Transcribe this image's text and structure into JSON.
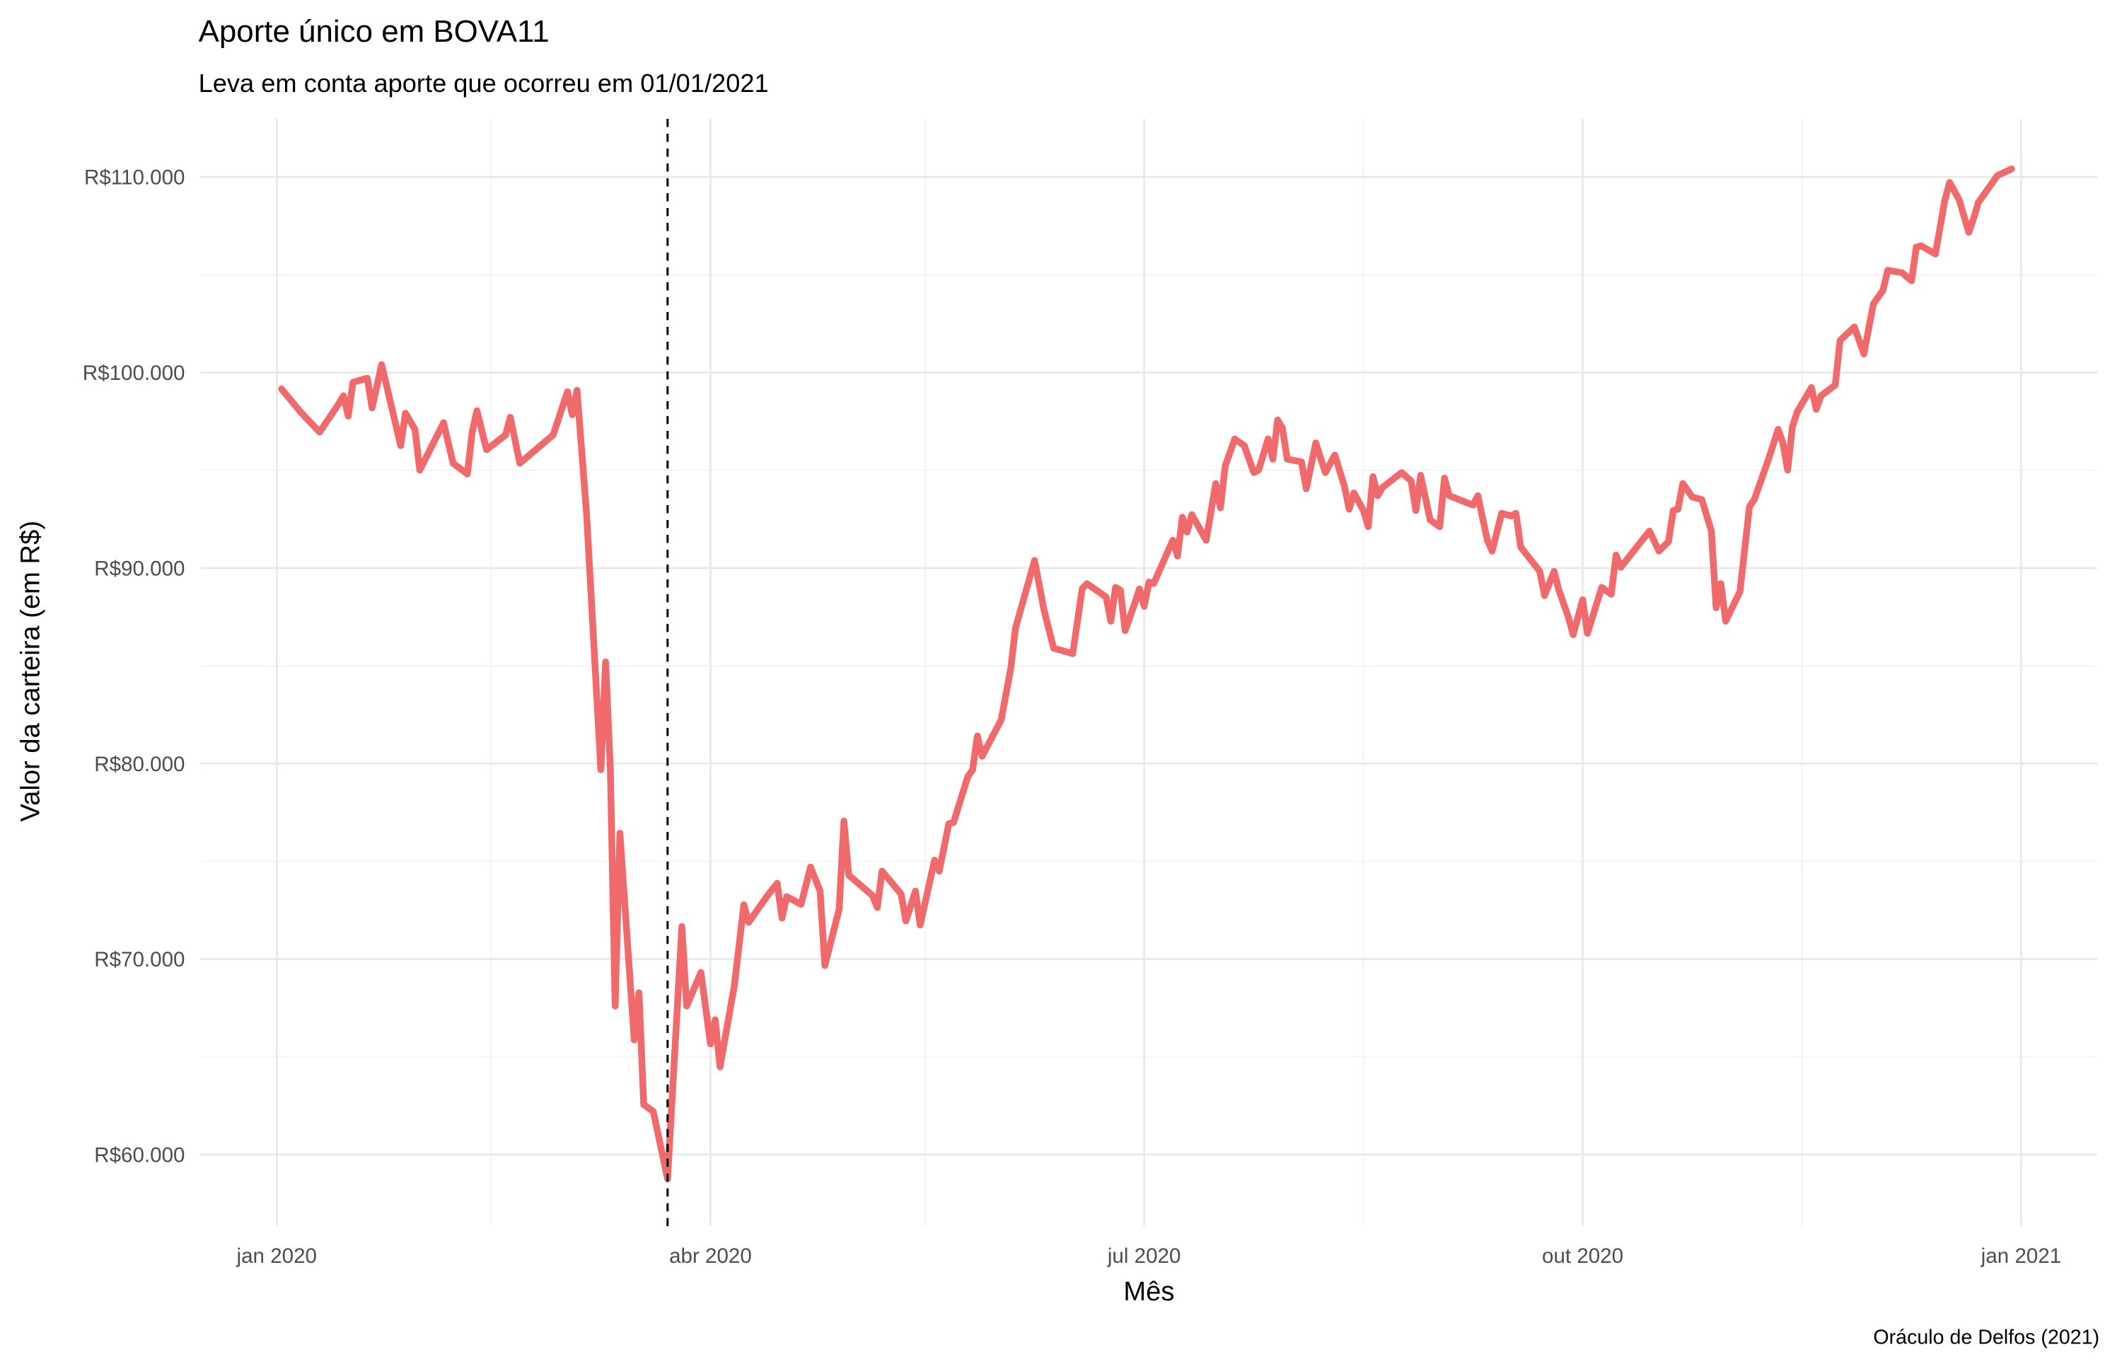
{
  "chart_data": {
    "type": "line",
    "title": "Aporte único em BOVA11",
    "subtitle": "Leva em conta aporte que ocorreu em 01/01/2021",
    "x_label": "Mês",
    "y_label": "Valor da carteira (em R$)",
    "caption": "Oráculo de Delfos (2021)",
    "color": "#f0696b",
    "grid": true,
    "vline": "2020-03-23",
    "xlim": [
      "2019-12-16",
      "2021-01-17"
    ],
    "xticks": [
      {
        "value": "2020-01-01",
        "label": "jan 2020"
      },
      {
        "value": "2020-04-01",
        "label": "abr 2020"
      },
      {
        "value": "2020-07-01",
        "label": "jul 2020"
      },
      {
        "value": "2020-10-01",
        "label": "out 2020"
      },
      {
        "value": "2021-01-01",
        "label": "jan 2021"
      }
    ],
    "xminor": [
      "2020-02-15",
      "2020-05-16",
      "2020-08-16",
      "2020-11-16"
    ],
    "ylim": [
      56340,
      112970
    ],
    "yticks": [
      {
        "value": 60000,
        "label": "R$60.000"
      },
      {
        "value": 70000,
        "label": "R$70.000"
      },
      {
        "value": 80000,
        "label": "R$80.000"
      },
      {
        "value": 90000,
        "label": "R$90.000"
      },
      {
        "value": 100000,
        "label": "R$100.000"
      },
      {
        "value": 110000,
        "label": "R$110.000"
      }
    ],
    "yminor": [
      65000,
      75000,
      85000,
      95000,
      105000
    ],
    "x": [
      "2020-01-02",
      "2020-01-06",
      "2020-01-10",
      "2020-01-14",
      "2020-01-15",
      "2020-01-16",
      "2020-01-17",
      "2020-01-20",
      "2020-01-21",
      "2020-01-23",
      "2020-01-27",
      "2020-01-28",
      "2020-01-30",
      "2020-01-31",
      "2020-02-05",
      "2020-02-07",
      "2020-02-10",
      "2020-02-11",
      "2020-02-12",
      "2020-02-14",
      "2020-02-18",
      "2020-02-19",
      "2020-02-21",
      "2020-02-28",
      "2020-03-02",
      "2020-03-03",
      "2020-03-04",
      "2020-03-06",
      "2020-03-09",
      "2020-03-10",
      "2020-03-11",
      "2020-03-12",
      "2020-03-13",
      "2020-03-16",
      "2020-03-17",
      "2020-03-18",
      "2020-03-20",
      "2020-03-23",
      "2020-03-26",
      "2020-03-27",
      "2020-03-30",
      "2020-04-01",
      "2020-04-02",
      "2020-04-03",
      "2020-04-06",
      "2020-04-08",
      "2020-04-09",
      "2020-04-13",
      "2020-04-15",
      "2020-04-16",
      "2020-04-17",
      "2020-04-20",
      "2020-04-22",
      "2020-04-24",
      "2020-04-25",
      "2020-04-28",
      "2020-04-29",
      "2020-04-30",
      "2020-05-05",
      "2020-05-06",
      "2020-05-07",
      "2020-05-11",
      "2020-05-12",
      "2020-05-14",
      "2020-05-15",
      "2020-05-18",
      "2020-05-19",
      "2020-05-21",
      "2020-05-22",
      "2020-05-25",
      "2020-05-26",
      "2020-05-27",
      "2020-05-28",
      "2020-06-01",
      "2020-06-03",
      "2020-06-04",
      "2020-06-08",
      "2020-06-10",
      "2020-06-12",
      "2020-06-16",
      "2020-06-18",
      "2020-06-19",
      "2020-06-23",
      "2020-06-24",
      "2020-06-25",
      "2020-06-26",
      "2020-06-27",
      "2020-06-29",
      "2020-06-30",
      "2020-07-01",
      "2020-07-02",
      "2020-07-03",
      "2020-07-07",
      "2020-07-08",
      "2020-07-09",
      "2020-07-10",
      "2020-07-11",
      "2020-07-14",
      "2020-07-16",
      "2020-07-17",
      "2020-07-18",
      "2020-07-20",
      "2020-07-22",
      "2020-07-24",
      "2020-07-25",
      "2020-07-27",
      "2020-07-28",
      "2020-07-29",
      "2020-07-30",
      "2020-07-31",
      "2020-08-03",
      "2020-08-04",
      "2020-08-06",
      "2020-08-08",
      "2020-08-10",
      "2020-08-12",
      "2020-08-13",
      "2020-08-14",
      "2020-08-16",
      "2020-08-17",
      "2020-08-18",
      "2020-08-19",
      "2020-08-20",
      "2020-08-24",
      "2020-08-26",
      "2020-08-27",
      "2020-08-28",
      "2020-08-30",
      "2020-09-01",
      "2020-09-02",
      "2020-09-03",
      "2020-09-08",
      "2020-09-09",
      "2020-09-11",
      "2020-09-12",
      "2020-09-14",
      "2020-09-16",
      "2020-09-17",
      "2020-09-18",
      "2020-09-22",
      "2020-09-23",
      "2020-09-25",
      "2020-09-26",
      "2020-09-28",
      "2020-09-29",
      "2020-10-01",
      "2020-10-02",
      "2020-10-05",
      "2020-10-07",
      "2020-10-08",
      "2020-10-09",
      "2020-10-13",
      "2020-10-15",
      "2020-10-17",
      "2020-10-19",
      "2020-10-20",
      "2020-10-21",
      "2020-10-22",
      "2020-10-24",
      "2020-10-26",
      "2020-10-28",
      "2020-10-29",
      "2020-10-30",
      "2020-10-31",
      "2020-11-03",
      "2020-11-05",
      "2020-11-06",
      "2020-11-09",
      "2020-11-11",
      "2020-11-12",
      "2020-11-13",
      "2020-11-14",
      "2020-11-15",
      "2020-11-18",
      "2020-11-19",
      "2020-11-20",
      "2020-11-23",
      "2020-11-24",
      "2020-11-27",
      "2020-11-29",
      "2020-12-01",
      "2020-12-03",
      "2020-12-04",
      "2020-12-07",
      "2020-12-09",
      "2020-12-10",
      "2020-12-11",
      "2020-12-14",
      "2020-12-16",
      "2020-12-17",
      "2020-12-19",
      "2020-12-21",
      "2020-12-22",
      "2020-12-23",
      "2020-12-27",
      "2020-12-30"
    ],
    "values": [
      99160,
      97980,
      96950,
      98400,
      98810,
      97770,
      99500,
      99710,
      98190,
      100400,
      96260,
      97920,
      97090,
      95010,
      97430,
      95360,
      94810,
      96950,
      98050,
      96050,
      96800,
      97710,
      95360,
      96810,
      99020,
      97840,
      99090,
      92800,
      79680,
      85200,
      79680,
      67600,
      76440,
      65870,
      68280,
      62560,
      62210,
      58760,
      71670,
      67600,
      69320,
      65660,
      66900,
      64490,
      68630,
      72780,
      71880,
      73260,
      73880,
      72100,
      73200,
      72800,
      74710,
      73470,
      69670,
      72560,
      77060,
      74300,
      73250,
      72640,
      74500,
      73330,
      71950,
      73480,
      71740,
      75060,
      74500,
      76920,
      76990,
      79340,
      79680,
      81410,
      80380,
      82240,
      84860,
      86930,
      90390,
      87830,
      85900,
      85620,
      88950,
      89200,
      88520,
      87280,
      89010,
      88870,
      86800,
      88180,
      88930,
      88040,
      89280,
      89210,
      91420,
      90610,
      92600,
      91840,
      92730,
      91420,
      94320,
      93080,
      95220,
      96600,
      96260,
      94880,
      95010,
      96600,
      95570,
      97570,
      97160,
      95570,
      95430,
      94050,
      96400,
      94880,
      95780,
      94190,
      93010,
      93840,
      92940,
      92110,
      94670,
      93700,
      94120,
      94880,
      94460,
      92940,
      94740,
      92460,
      92110,
      94600,
      93700,
      93220,
      93700,
      91420,
      90870,
      92800,
      92660,
      92800,
      91070,
      89830,
      88590,
      89830,
      88870,
      87490,
      86590,
      88380,
      86660,
      89010,
      88660,
      90660,
      90040,
      91280,
      91890,
      90870,
      91350,
      92940,
      93010,
      94320,
      93630,
      93500,
      91890,
      87970,
      89200,
      87280,
      88800,
      93150,
      93500,
      95570,
      97090,
      96400,
      95010,
      97220,
      97980,
      99230,
      98120,
      98810,
      99360,
      101640,
      102330,
      100950,
      103510,
      104200,
      105230,
      105100,
      104690,
      106410,
      106480,
      106060,
      108830,
      109720,
      108830,
      107170,
      107860,
      108690,
      110070,
      110410
    ]
  }
}
